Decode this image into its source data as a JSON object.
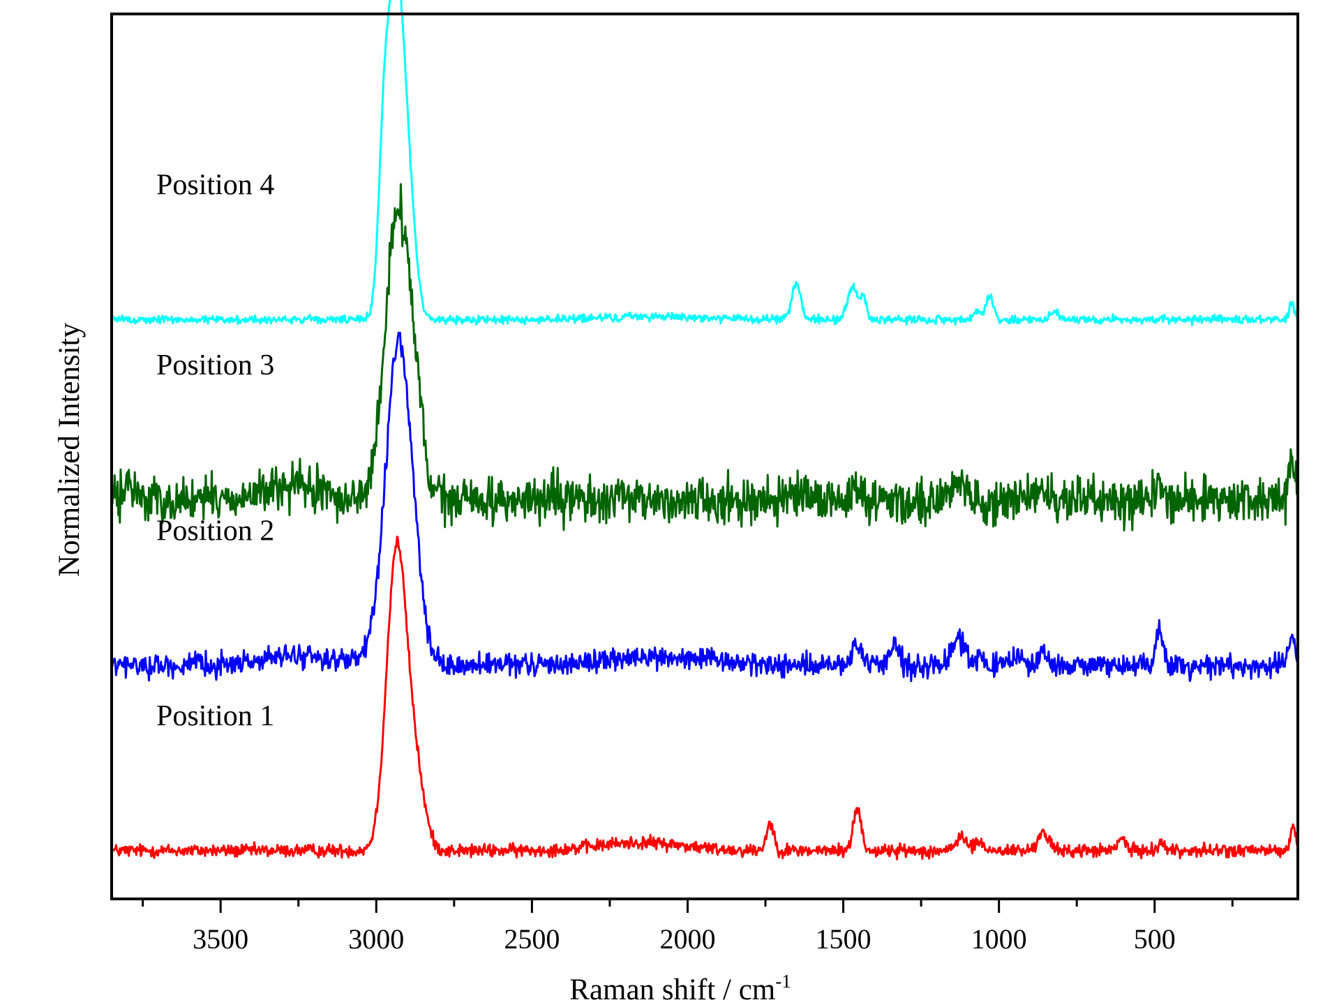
{
  "chart_data": {
    "type": "line",
    "title": "",
    "xlabel": "Raman shift / cm",
    "xlabel_superscript": "-1",
    "ylabel": "Normalized Intensity",
    "xlim": [
      3850,
      40
    ],
    "x_reversed": true,
    "xticks": [
      3500,
      3000,
      2500,
      2000,
      1500,
      1000,
      500
    ],
    "x_minor_ticks": [
      3750,
      3250,
      2750,
      2250,
      1750,
      1250,
      750,
      250
    ],
    "yticks_shown": false,
    "ylim": [
      0,
      5.5
    ],
    "legend": "inline labels at left, one per trace",
    "grid": false,
    "series": [
      {
        "name": "Position 1",
        "color": "#ff0000",
        "baseline": 0.3,
        "noise": 0.035,
        "peaks": [
          [
            2935,
            1.85,
            32
          ],
          [
            2875,
            0.45,
            30
          ],
          [
            1735,
            0.17,
            12
          ],
          [
            1455,
            0.26,
            13
          ],
          [
            1120,
            0.1,
            14
          ],
          [
            1065,
            0.06,
            12
          ],
          [
            865,
            0.12,
            11
          ],
          [
            840,
            0.06,
            10
          ],
          [
            605,
            0.08,
            12
          ],
          [
            480,
            0.05,
            12
          ],
          [
            55,
            0.15,
            8
          ]
        ],
        "humps": [
          [
            2150,
            0.05,
            140
          ]
        ]
      },
      {
        "name": "Position 2",
        "color": "#0000ff",
        "baseline": 1.45,
        "noise": 0.06,
        "peaks": [
          [
            2935,
            1.8,
            36
          ],
          [
            2885,
            0.6,
            32
          ],
          [
            3000,
            0.12,
            30
          ],
          [
            1460,
            0.12,
            14
          ],
          [
            1335,
            0.14,
            15
          ],
          [
            1130,
            0.18,
            20
          ],
          [
            1065,
            0.06,
            12
          ],
          [
            940,
            0.08,
            12
          ],
          [
            860,
            0.1,
            12
          ],
          [
            485,
            0.22,
            12
          ],
          [
            60,
            0.2,
            9
          ]
        ],
        "humps": [
          [
            3250,
            0.06,
            120
          ],
          [
            2100,
            0.05,
            180
          ]
        ]
      },
      {
        "name": "Position 3",
        "color": "#006400",
        "baseline": 2.48,
        "noise": 0.12,
        "peaks": [
          [
            2935,
            1.7,
            38
          ],
          [
            2880,
            0.5,
            30
          ],
          [
            1460,
            0.08,
            14
          ],
          [
            1130,
            0.12,
            18
          ],
          [
            860,
            0.06,
            12
          ],
          [
            490,
            0.16,
            10
          ],
          [
            60,
            0.28,
            8
          ]
        ],
        "humps": [
          [
            3270,
            0.08,
            90
          ],
          [
            3790,
            0.08,
            25
          ]
        ]
      },
      {
        "name": "Position 4",
        "color": "#00ffff",
        "baseline": 3.6,
        "noise": 0.022,
        "peaks": [
          [
            2935,
            1.95,
            26
          ],
          [
            2975,
            0.95,
            18
          ],
          [
            2895,
            0.55,
            24
          ],
          [
            1650,
            0.23,
            14
          ],
          [
            1470,
            0.2,
            16
          ],
          [
            1435,
            0.13,
            10
          ],
          [
            1030,
            0.15,
            12
          ],
          [
            1070,
            0.06,
            10
          ],
          [
            820,
            0.05,
            14
          ],
          [
            60,
            0.09,
            8
          ]
        ],
        "humps": [
          [
            2100,
            0.02,
            160
          ]
        ]
      }
    ]
  }
}
